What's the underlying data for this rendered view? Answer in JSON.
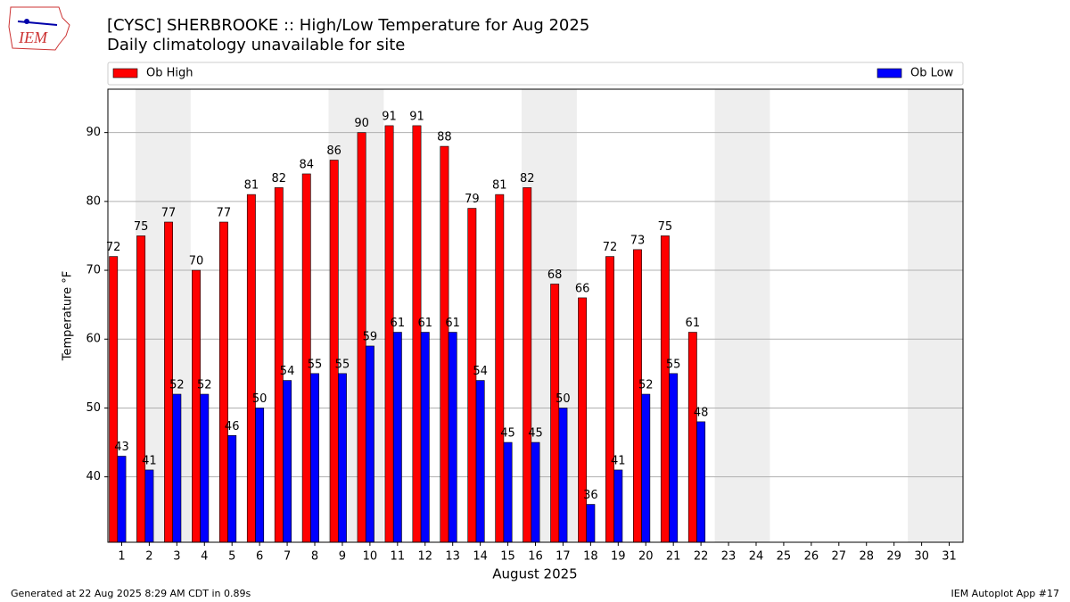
{
  "chart_data": {
    "type": "bar",
    "title": "[CYSC] SHERBROOKE :: High/Low Temperature for Aug 2025",
    "subtitle": "Daily climatology unavailable for site",
    "x_label": "August 2025",
    "y_label": "Temperature °F",
    "categories": [
      "1",
      "2",
      "3",
      "4",
      "5",
      "6",
      "7",
      "8",
      "9",
      "10",
      "11",
      "12",
      "13",
      "14",
      "15",
      "16",
      "17",
      "18",
      "19",
      "20",
      "21",
      "22",
      "23",
      "24",
      "25",
      "26",
      "27",
      "28",
      "29",
      "30",
      "31"
    ],
    "series": [
      {
        "name": "Ob High",
        "color": "#ff0000",
        "values": [
          72,
          75,
          77,
          70,
          77,
          81,
          82,
          84,
          86,
          90,
          91,
          91,
          88,
          79,
          81,
          82,
          68,
          66,
          72,
          73,
          75,
          61,
          null,
          null,
          null,
          null,
          null,
          null,
          null,
          null,
          null
        ]
      },
      {
        "name": "Ob Low",
        "color": "#0000ff",
        "values": [
          43,
          41,
          52,
          52,
          46,
          50,
          54,
          55,
          55,
          59,
          61,
          61,
          61,
          54,
          45,
          45,
          50,
          36,
          41,
          52,
          55,
          48,
          null,
          null,
          null,
          null,
          null,
          null,
          null,
          null,
          null
        ]
      }
    ],
    "ylim": [
      30.5,
      96.3
    ],
    "yticks": [
      40,
      50,
      60,
      70,
      80,
      90
    ],
    "grid": true,
    "legend": "top"
  },
  "logo": "IEM",
  "footer_left": "Generated at 22 Aug 2025 8:29 AM CDT in 0.89s",
  "footer_right": "IEM Autoplot App #17"
}
